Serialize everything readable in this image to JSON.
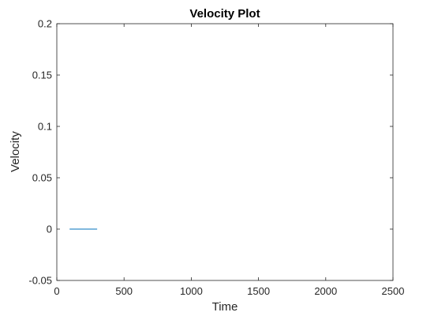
{
  "chart_data": {
    "type": "line",
    "title": "Velocity Plot",
    "xlabel": "Time",
    "ylabel": "Velocity",
    "xlim": [
      0,
      2500
    ],
    "ylim": [
      -0.05,
      0.2
    ],
    "xticks": [
      0,
      500,
      1000,
      1500,
      2000,
      2500
    ],
    "xtick_labels": [
      "0",
      "500",
      "1000",
      "1500",
      "2000",
      "2500"
    ],
    "yticks": [
      -0.05,
      0,
      0.05,
      0.1,
      0.15,
      0.2
    ],
    "ytick_labels": [
      "-0.05",
      "0",
      "0.05",
      "0.1",
      "0.15",
      "0.2"
    ],
    "grid": false,
    "line_color": "#0072BD",
    "series": [
      {
        "points": [
          [
            95,
            0.0
          ],
          [
            100,
            0.0
          ],
          [
            105,
            0.0
          ],
          [
            110,
            0.0
          ],
          [
            115,
            0.0
          ],
          [
            120,
            0.0
          ],
          [
            125,
            0.0
          ],
          [
            130,
            0.0
          ],
          [
            135,
            0.0
          ],
          [
            140,
            0.0
          ],
          [
            145,
            0.0
          ],
          [
            150,
            0.0
          ],
          [
            155,
            0.0
          ],
          [
            160,
            0.0
          ],
          [
            165,
            0.0
          ],
          [
            170,
            0.0
          ],
          [
            175,
            0.0
          ],
          [
            180,
            0.0
          ],
          [
            185,
            0.0
          ],
          [
            190,
            0.0
          ],
          [
            195,
            0.0
          ],
          [
            200,
            0.0
          ],
          [
            205,
            0.0
          ],
          [
            210,
            0.0
          ],
          [
            215,
            0.0
          ],
          [
            220,
            0.0
          ],
          [
            225,
            0.0
          ],
          [
            230,
            0.0
          ],
          [
            235,
            0.0
          ],
          [
            240,
            0.0
          ],
          [
            245,
            0.0
          ],
          [
            250,
            0.0
          ],
          [
            255,
            0.0
          ],
          [
            260,
            0.0
          ],
          [
            265,
            0.0
          ],
          [
            270,
            0.0
          ],
          [
            275,
            0.0
          ],
          [
            280,
            0.0
          ],
          [
            285,
            0.0
          ],
          [
            290,
            0.0
          ],
          [
            295,
            0.0
          ],
          [
            300,
            0.0
          ]
        ]
      }
    ]
  }
}
